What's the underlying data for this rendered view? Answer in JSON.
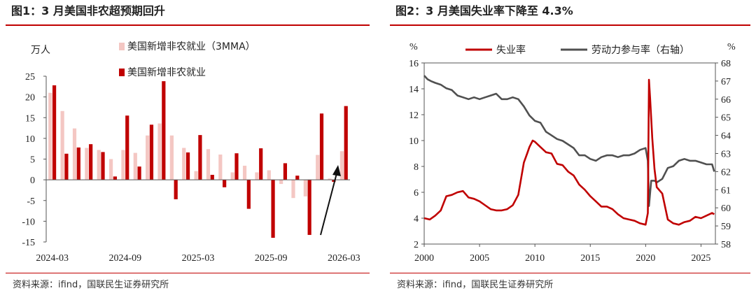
{
  "chart_data": [
    {
      "type": "bar",
      "title": "图1：3 月美国非农超预期回升",
      "ylabel": "万人",
      "ylim": [
        -15,
        25
      ],
      "yticks": [
        25,
        20,
        15,
        10,
        5,
        0,
        -5,
        -10,
        -15
      ],
      "xtick_labels": [
        "2024-03",
        "2024-09",
        "2025-03",
        "2025-09",
        "2026-03"
      ],
      "categories": [
        "2024-03",
        "2024-04",
        "2024-05",
        "2024-06",
        "2024-07",
        "2024-08",
        "2024-09",
        "2024-10",
        "2024-11",
        "2024-12",
        "2025-01",
        "2025-02",
        "2025-03",
        "2025-04",
        "2025-05",
        "2025-06",
        "2025-07",
        "2025-08",
        "2025-09",
        "2025-10",
        "2025-11",
        "2025-12",
        "2026-01",
        "2026-02",
        "2026-03"
      ],
      "series": [
        {
          "name": "美国新增非农就业（3MMA）",
          "color": "#f4c7c3",
          "values": [
            21.0,
            16.6,
            12.4,
            7.7,
            7.2,
            5.0,
            7.2,
            6.5,
            10.7,
            13.6,
            10.7,
            7.7,
            2.1,
            7.4,
            6.1,
            1.8,
            3.4,
            1.8,
            2.3,
            -1.0,
            -4.4,
            -4.0,
            6.0,
            0.3,
            6.9
          ]
        },
        {
          "name": "美国新增非农就业",
          "color": "#c00000",
          "values": [
            22.8,
            6.3,
            7.8,
            8.6,
            6.7,
            0.8,
            15.5,
            3.2,
            13.3,
            23.8,
            -4.7,
            6.6,
            10.8,
            1.2,
            -1.8,
            6.4,
            -7.0,
            7.6,
            -14.0,
            4.0,
            1.0,
            -13.3,
            16.0,
            -0.5,
            17.8
          ]
        }
      ],
      "legend": "top",
      "annotation": "upward-arrow"
    },
    {
      "type": "line",
      "title": "图2：3 月美国失业率下降至 4.3%",
      "ylabel_left": "%",
      "ylabel_right": "%",
      "ylim_left": [
        2,
        16
      ],
      "ylim_right": [
        58,
        68
      ],
      "yticks_left": [
        16,
        14,
        12,
        10,
        8,
        6,
        4,
        2
      ],
      "yticks_right": [
        68,
        67,
        66,
        65,
        64,
        63,
        62,
        61,
        60,
        59,
        58
      ],
      "xlim": [
        2000,
        2026.3
      ],
      "xticks": [
        2000,
        2005,
        2010,
        2015,
        2020,
        2025
      ],
      "legend": "top",
      "series": [
        {
          "name": "失业率",
          "axis": "left",
          "color": "#c00000",
          "x": [
            2000,
            2000.5,
            2001,
            2001.5,
            2002,
            2002.5,
            2003,
            2003.5,
            2004,
            2004.5,
            2005,
            2005.5,
            2006,
            2006.5,
            2007,
            2007.5,
            2008,
            2008.5,
            2009,
            2009.3,
            2009.5,
            2009.8,
            2010,
            2010.5,
            2011,
            2011.5,
            2012,
            2012.5,
            2013,
            2013.5,
            2014,
            2014.5,
            2015,
            2015.5,
            2016,
            2016.5,
            2017,
            2017.5,
            2018,
            2018.5,
            2019,
            2019.5,
            2020.0,
            2020.2,
            2020.3,
            2020.4,
            2020.6,
            2020.8,
            2021,
            2021.5,
            2022,
            2022.5,
            2023,
            2023.5,
            2024,
            2024.5,
            2025,
            2025.5,
            2026,
            2026.2
          ],
          "y": [
            4.0,
            3.9,
            4.2,
            4.6,
            5.7,
            5.8,
            6.0,
            6.1,
            5.6,
            5.5,
            5.3,
            5.0,
            4.7,
            4.6,
            4.6,
            4.7,
            5.0,
            5.8,
            8.3,
            9.0,
            9.5,
            10.0,
            9.9,
            9.5,
            9.1,
            9.0,
            8.2,
            8.1,
            7.6,
            7.3,
            6.6,
            6.2,
            5.7,
            5.3,
            4.9,
            4.9,
            4.7,
            4.3,
            4.0,
            3.9,
            3.8,
            3.6,
            3.5,
            4.4,
            14.7,
            13.3,
            10.2,
            7.8,
            6.4,
            5.9,
            3.9,
            3.6,
            3.5,
            3.7,
            3.8,
            4.1,
            4.0,
            4.2,
            4.4,
            4.3
          ]
        },
        {
          "name": "劳动力参与率（右轴）",
          "axis": "right",
          "color": "#505050",
          "x": [
            2000,
            2000.3,
            2000.6,
            2001,
            2001.5,
            2002,
            2002.5,
            2003,
            2003.5,
            2004,
            2004.5,
            2005,
            2005.5,
            2006,
            2006.5,
            2007,
            2007.5,
            2008,
            2008.5,
            2009,
            2009.5,
            2010,
            2010.5,
            2011,
            2011.5,
            2012,
            2012.5,
            2013,
            2013.5,
            2014,
            2014.5,
            2015,
            2015.5,
            2016,
            2016.5,
            2017,
            2017.5,
            2018,
            2018.5,
            2019,
            2019.5,
            2020.0,
            2020.2,
            2020.3,
            2020.5,
            2020.8,
            2021,
            2021.5,
            2022,
            2022.5,
            2023,
            2023.5,
            2024,
            2024.5,
            2025,
            2025.5,
            2026,
            2026.2
          ],
          "y": [
            67.3,
            67.1,
            67.0,
            66.9,
            66.8,
            66.6,
            66.5,
            66.2,
            66.1,
            66.0,
            66.1,
            66.0,
            66.1,
            66.2,
            66.3,
            66.0,
            66.0,
            66.1,
            66.0,
            65.6,
            65.1,
            64.8,
            64.7,
            64.2,
            64.0,
            63.8,
            63.7,
            63.5,
            63.3,
            62.9,
            62.9,
            62.7,
            62.6,
            62.8,
            62.9,
            62.9,
            62.8,
            62.9,
            62.9,
            63.0,
            63.2,
            63.3,
            62.6,
            60.1,
            61.5,
            61.5,
            61.4,
            61.6,
            62.2,
            62.3,
            62.6,
            62.7,
            62.6,
            62.6,
            62.5,
            62.4,
            62.4,
            62.0
          ]
        }
      ]
    }
  ],
  "source1": "资料来源：ifind，国联民生证券研究所",
  "source2": "资料来源：ifind，国联民生证券研究所",
  "colors": {
    "accent": "#c00000",
    "bar_light": "#f4c7c3",
    "grey_line": "#505050"
  }
}
